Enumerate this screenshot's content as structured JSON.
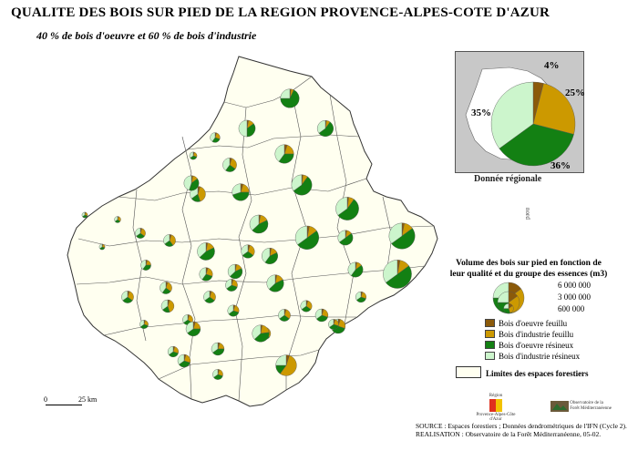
{
  "title": "QUALITE DES BOIS SUR PIED DE LA REGION PROVENCE-ALPES-COTE D'AZUR",
  "subtitle": "40 % de bois d'oeuvre et 60 % de bois d'industrie",
  "colors": {
    "oeuvre_feuillu": "#8b5a0a",
    "industrie_feuillu": "#cc9900",
    "oeuvre_resineux": "#138013",
    "industrie_resineux": "#ccf5cc",
    "forest_fill": "#fffff0",
    "inset_bg": "#c8c8c8"
  },
  "regional": {
    "caption": "Donnée régionale",
    "labels": [
      "4%",
      "25%",
      "36%",
      "35%"
    ],
    "shares": [
      0.04,
      0.25,
      0.36,
      0.35
    ]
  },
  "legend": {
    "title_line1": "Volume des bois sur pied en fonction de",
    "title_line2": "leur qualité et du groupe des essences (m3)",
    "scale_values": [
      "6 000 000",
      "3 000 000",
      "600 000"
    ],
    "scale_volumes": [
      6000000,
      3000000,
      600000
    ],
    "items": [
      {
        "label": "Bois d'oeuvre feuillu",
        "color": "#8b5a0a"
      },
      {
        "label": "Bois d'industrie feuillu",
        "color": "#cc9900"
      },
      {
        "label": "Bois d'oeuvre résineux",
        "color": "#138013"
      },
      {
        "label": "Bois d'industrie résineux",
        "color": "#ccf5cc"
      }
    ],
    "forest_limits": "Limites des espaces forestiers"
  },
  "scalebar": {
    "start": "0",
    "end": "25 km"
  },
  "north_label": "nord",
  "logos": {
    "region_top": "Région",
    "region_bottom": "Provence-Alpes-Côte d'Azur",
    "ofm": "Observatoire de la Forêt Méditerranéenne"
  },
  "source_line1": "SOURCE : Espaces forestiers ; Données dendrométriques de l'IFN (Cycle 2).",
  "source_line2": "REALISATION : Observatoire de la Forêt Méditerranéenne, 05-02.",
  "units": [
    {
      "volume": 2200000,
      "shares": [
        0.02,
        0.05,
        0.68,
        0.25
      ]
    },
    {
      "volume": 1700000,
      "shares": [
        0.03,
        0.12,
        0.35,
        0.5
      ]
    },
    {
      "volume": 600000,
      "shares": [
        0.05,
        0.25,
        0.3,
        0.4
      ]
    },
    {
      "volume": 1600000,
      "shares": [
        0.02,
        0.08,
        0.55,
        0.35
      ]
    },
    {
      "volume": 350000,
      "shares": [
        0.05,
        0.25,
        0.35,
        0.35
      ]
    },
    {
      "volume": 1200000,
      "shares": [
        0.05,
        0.3,
        0.25,
        0.4
      ]
    },
    {
      "volume": 2200000,
      "shares": [
        0.05,
        0.2,
        0.35,
        0.4
      ]
    },
    {
      "volume": 2600000,
      "shares": [
        0.02,
        0.08,
        0.55,
        0.35
      ]
    },
    {
      "volume": 1800000,
      "shares": [
        0.05,
        0.2,
        0.45,
        0.3
      ]
    },
    {
      "volume": 1500000,
      "shares": [
        0.05,
        0.4,
        0.2,
        0.35
      ]
    },
    {
      "volume": 3300000,
      "shares": [
        0.02,
        0.08,
        0.55,
        0.35
      ]
    },
    {
      "volume": 2100000,
      "shares": [
        0.03,
        0.15,
        0.45,
        0.37
      ]
    },
    {
      "volume": 3500000,
      "shares": [
        0.03,
        0.12,
        0.5,
        0.35
      ]
    },
    {
      "volume": 4200000,
      "shares": [
        0.03,
        0.12,
        0.5,
        0.35
      ]
    },
    {
      "volume": 200000,
      "shares": [
        0.05,
        0.25,
        0.35,
        0.35
      ]
    },
    {
      "volume": 250000,
      "shares": [
        0.05,
        0.3,
        0.3,
        0.35
      ]
    },
    {
      "volume": 650000,
      "shares": [
        0.05,
        0.3,
        0.3,
        0.35
      ]
    },
    {
      "volume": 900000,
      "shares": [
        0.05,
        0.35,
        0.25,
        0.35
      ]
    },
    {
      "volume": 1900000,
      "shares": [
        0.03,
        0.15,
        0.45,
        0.37
      ]
    },
    {
      "volume": 1100000,
      "shares": [
        0.05,
        0.3,
        0.3,
        0.35
      ]
    },
    {
      "volume": 1600000,
      "shares": [
        0.03,
        0.15,
        0.42,
        0.4
      ]
    },
    {
      "volume": 1400000,
      "shares": [
        0.03,
        0.12,
        0.5,
        0.35
      ]
    },
    {
      "volume": 1400000,
      "shares": [
        0.03,
        0.12,
        0.45,
        0.4
      ]
    },
    {
      "volume": 5100000,
      "shares": [
        0.03,
        0.12,
        0.5,
        0.35
      ]
    },
    {
      "volume": 200000,
      "shares": [
        0.05,
        0.25,
        0.35,
        0.35
      ]
    },
    {
      "volume": 650000,
      "shares": [
        0.05,
        0.2,
        0.35,
        0.4
      ]
    },
    {
      "volume": 900000,
      "shares": [
        0.05,
        0.3,
        0.25,
        0.4
      ]
    },
    {
      "volume": 1100000,
      "shares": [
        0.05,
        0.25,
        0.3,
        0.4
      ]
    },
    {
      "volume": 1300000,
      "shares": [
        0.03,
        0.15,
        0.45,
        0.37
      ]
    },
    {
      "volume": 1400000,
      "shares": [
        0.03,
        0.12,
        0.4,
        0.45
      ]
    },
    {
      "volume": 1800000,
      "shares": [
        0.03,
        0.15,
        0.45,
        0.37
      ]
    },
    {
      "volume": 1000000,
      "shares": [
        0.05,
        0.4,
        0.2,
        0.35
      ]
    },
    {
      "volume": 650000,
      "shares": [
        0.05,
        0.3,
        0.3,
        0.35
      ]
    },
    {
      "volume": 800000,
      "shares": [
        0.05,
        0.3,
        0.3,
        0.35
      ]
    },
    {
      "volume": 1000000,
      "shares": [
        0.05,
        0.3,
        0.3,
        0.35
      ]
    },
    {
      "volume": 1000000,
      "shares": [
        0.05,
        0.2,
        0.4,
        0.35
      ]
    },
    {
      "volume": 1000000,
      "shares": [
        0.05,
        0.25,
        0.35,
        0.35
      ]
    },
    {
      "volume": 650000,
      "shares": [
        0.05,
        0.25,
        0.35,
        0.35
      ]
    },
    {
      "volume": 800000,
      "shares": [
        0.05,
        0.25,
        0.35,
        0.35
      ]
    },
    {
      "volume": 900000,
      "shares": [
        0.05,
        0.3,
        0.3,
        0.35
      ]
    },
    {
      "volume": 1000000,
      "shares": [
        0.05,
        0.25,
        0.35,
        0.35
      ]
    },
    {
      "volume": 1300000,
      "shares": [
        0.05,
        0.25,
        0.35,
        0.35
      ]
    },
    {
      "volume": 1800000,
      "shares": [
        0.03,
        0.2,
        0.4,
        0.37
      ]
    },
    {
      "volume": 450000,
      "shares": [
        0.05,
        0.25,
        0.35,
        0.35
      ]
    },
    {
      "volume": 900000,
      "shares": [
        0.05,
        0.3,
        0.3,
        0.35
      ]
    },
    {
      "volume": 900000,
      "shares": [
        0.05,
        0.3,
        0.3,
        0.35
      ]
    },
    {
      "volume": 700000,
      "shares": [
        0.05,
        0.25,
        0.35,
        0.35
      ]
    },
    {
      "volume": 650000,
      "shares": [
        0.05,
        0.25,
        0.35,
        0.35
      ]
    },
    {
      "volume": 1300000,
      "shares": [
        0.05,
        0.2,
        0.4,
        0.35
      ]
    },
    {
      "volume": 2700000,
      "shares": [
        0.05,
        0.55,
        0.15,
        0.25
      ]
    },
    {
      "volume": 900000,
      "shares": [
        0.05,
        0.25,
        0.35,
        0.35
      ]
    },
    {
      "volume": 700000,
      "shares": [
        0.05,
        0.25,
        0.35,
        0.35
      ]
    }
  ]
}
